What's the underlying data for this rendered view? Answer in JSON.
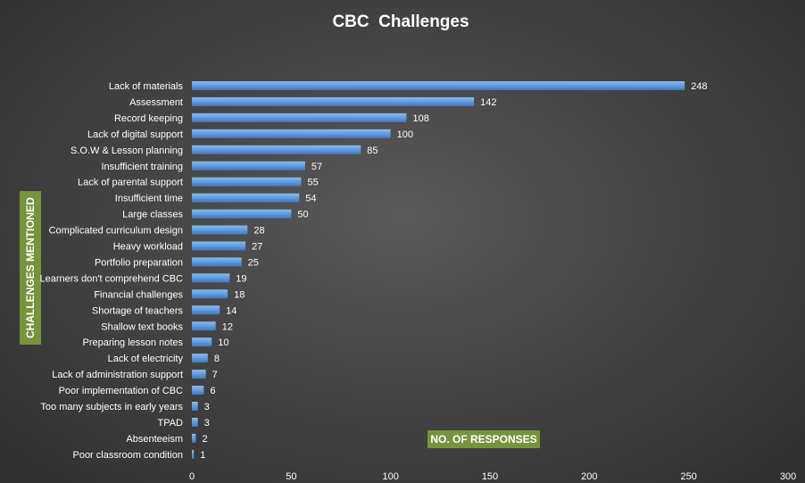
{
  "chart_data": {
    "type": "bar",
    "orientation": "horizontal",
    "title": "CBC  Challenges",
    "xlabel": "NO. OF RESPONSES",
    "ylabel": "CHALLENGES MENTIONED",
    "xlim": [
      0,
      300
    ],
    "xticks": [
      0,
      50,
      100,
      150,
      200,
      250,
      300
    ],
    "categories": [
      "Lack of materials",
      "Assessment",
      "Record keeping",
      "Lack of digital support",
      "S.O.W & Lesson planning",
      "Insufficient training",
      "Lack of parental support",
      "Insufficient time",
      "Large classes",
      "Complicated curriculum design",
      "Heavy workload",
      "Portfolio preparation",
      "Learners don't comprehend CBC",
      "Financial challenges",
      "Shortage of teachers",
      "Shallow text books",
      "Preparing lesson notes",
      "Lack of electricity",
      "Lack of administration support",
      "Poor implementation of CBC",
      "Too many subjects in early years",
      "TPAD",
      "Absenteeism",
      "Poor classroom condition"
    ],
    "values": [
      248,
      142,
      108,
      100,
      85,
      57,
      55,
      54,
      50,
      28,
      27,
      25,
      19,
      18,
      14,
      12,
      10,
      8,
      7,
      6,
      3,
      3,
      2,
      1
    ],
    "grid": false,
    "legend": "none"
  },
  "colors": {
    "bar_top": "#8cbcf0",
    "bar_bottom": "#3a78c4",
    "label_box": "#77933c"
  }
}
